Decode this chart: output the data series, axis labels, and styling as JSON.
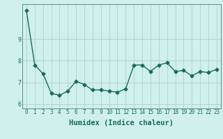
{
  "x": [
    0,
    1,
    2,
    3,
    4,
    5,
    6,
    7,
    8,
    9,
    10,
    11,
    12,
    13,
    14,
    15,
    16,
    17,
    18,
    19,
    20,
    21,
    22,
    23
  ],
  "y": [
    10.3,
    7.8,
    7.4,
    6.5,
    6.4,
    6.6,
    7.05,
    6.9,
    6.65,
    6.65,
    6.6,
    6.55,
    6.7,
    7.8,
    7.8,
    7.5,
    7.8,
    7.9,
    7.5,
    7.55,
    7.3,
    7.5,
    7.45,
    7.6
  ],
  "xlabel": "Humidex (Indice chaleur)",
  "ylim": [
    5.8,
    10.6
  ],
  "xlim": [
    -0.5,
    23.5
  ],
  "line_color": "#1a6b5a",
  "bg_color": "#cff0ec",
  "grid_color": "#b0d0cc",
  "tick_label_color": "#1a6b5a",
  "xlabel_color": "#1a6b5a",
  "marker": "D",
  "markersize": 2.5,
  "linewidth": 1.0,
  "yticks": [
    6,
    7,
    8,
    9
  ],
  "xticks": [
    0,
    1,
    2,
    3,
    4,
    5,
    6,
    7,
    8,
    9,
    10,
    11,
    12,
    13,
    14,
    15,
    16,
    17,
    18,
    19,
    20,
    21,
    22,
    23
  ],
  "spine_color": "#5a9090",
  "tick_fontsize": 5.5,
  "xlabel_fontsize": 7.5
}
